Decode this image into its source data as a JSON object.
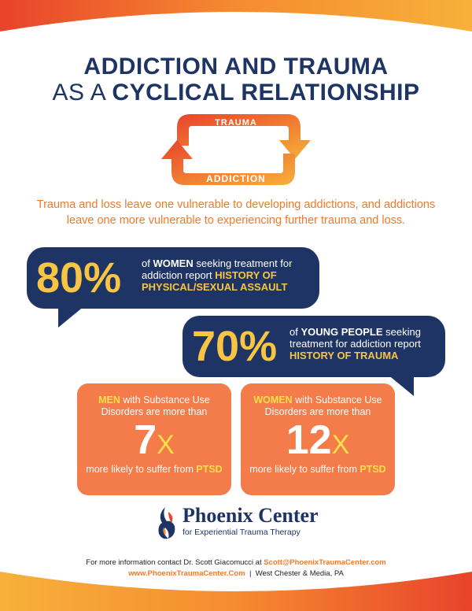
{
  "title": {
    "line1": "ADDICTION AND TRAUMA",
    "line2_prefix": "AS A ",
    "line2_bold": "CYCLICAL RELATIONSHIP"
  },
  "cycle": {
    "top_label": "TRAUMA",
    "bottom_label": "ADDICTION"
  },
  "intro": "Trauma and loss leave one vulnerable to developing addictions, and addictions leave one more vulnerable to experiencing further trauma and loss.",
  "stat1": {
    "percent": "80%",
    "pre": "of ",
    "kw1": "WOMEN",
    "mid": " seeking treatment for addiction report ",
    "kw2": "HISTORY OF PHYSICAL/SEXUAL ASSAULT"
  },
  "stat2": {
    "percent": "70%",
    "pre": "of ",
    "kw1": "YOUNG PEOPLE",
    "mid": " seeking treatment for addiction report ",
    "kw2": "HISTORY OF TRAUMA"
  },
  "card1": {
    "kw": "MEN",
    "top": " with Substance Use Disorders are more than",
    "num": "7",
    "x": "X",
    "bottom": "more likely to suffer from ",
    "kw2": "PTSD"
  },
  "card2": {
    "kw": "WOMEN",
    "top": " with Substance Use Disorders are more than",
    "num": "12",
    "x": "X",
    "bottom": "more likely to suffer from ",
    "kw2": "PTSD"
  },
  "logo": {
    "name": "Phoenix Center",
    "sub": "for Experiential Trauma Therapy"
  },
  "footer": {
    "line1_prefix": "For more information contact Dr. Scott Giacomucci at ",
    "email": "Scott@PhoenixTraumaCenter.com",
    "website": "www.PhoenixTraumaCenter.Com",
    "separator": "|",
    "location": "West Chester & Media, PA"
  },
  "colors": {
    "navy": "#1e3465",
    "orange": "#f47b4a",
    "accent": "#f07a2a",
    "yellow": "#f7c443"
  }
}
